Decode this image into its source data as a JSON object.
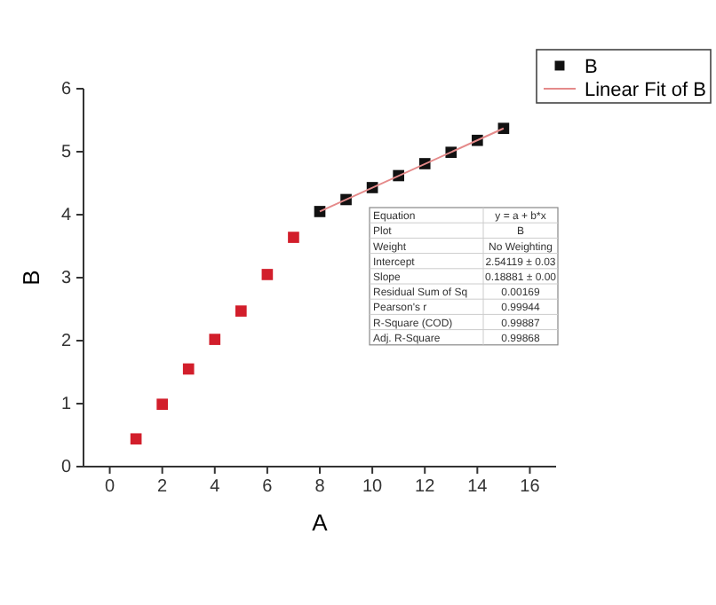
{
  "chart_data": {
    "type": "scatter",
    "xlabel": "A",
    "ylabel": "B",
    "xlim": [
      -1,
      17
    ],
    "ylim": [
      0,
      6
    ],
    "xticks": [
      0,
      2,
      4,
      6,
      8,
      10,
      12,
      14,
      16
    ],
    "yticks": [
      0,
      1,
      2,
      3,
      4,
      5,
      6
    ],
    "grid": false,
    "marker": "square",
    "legend": "top right",
    "series": [
      {
        "color": "#d21e2b",
        "x": [
          1,
          2,
          3,
          4,
          5,
          6,
          7
        ],
        "values": [
          0.44,
          0.99,
          1.55,
          2.02,
          2.47,
          3.05,
          3.64
        ]
      },
      {
        "name": "B",
        "color": "#111111",
        "x": [
          8,
          9,
          10,
          11,
          12,
          13,
          14,
          15
        ],
        "values": [
          4.05,
          4.24,
          4.43,
          4.62,
          4.81,
          4.99,
          5.18,
          5.37
        ]
      },
      {
        "name": "Linear Fit of B",
        "type": "line",
        "color": "#e58a8a",
        "line_style": "solid",
        "marker": "none",
        "x": [
          8,
          15
        ],
        "values": [
          4.05,
          5.37
        ]
      }
    ],
    "annotations": [
      "Equation",
      "y = a + b*x",
      "Plot",
      "B",
      "Weight",
      "No Weighting",
      "Intercept",
      "2.54119 ± 0.03",
      "Slope",
      "0.18881 ± 0.00",
      "Residual Sum of Sq",
      "0.00169",
      "Pearson's r",
      "0.99944",
      "R-Square (COD)",
      "0.99887",
      "Adj. R-Square",
      "0.99868"
    ]
  }
}
